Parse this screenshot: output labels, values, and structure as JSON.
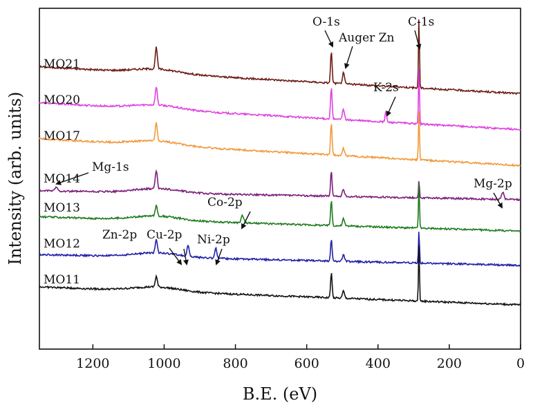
{
  "chart_data": {
    "type": "line",
    "title": "",
    "xlabel": "B.E. (eV)",
    "ylabel": "Intensity (arb. units)",
    "xlim": [
      1350,
      0
    ],
    "x_ticks": [
      1200,
      1000,
      800,
      600,
      400,
      200,
      0
    ],
    "x_tick_labels": [
      "1200",
      "1000",
      "800",
      "600",
      "400",
      "200",
      "0"
    ],
    "y_ticks_shown": false,
    "peak_be": {
      "Mg-1s": 1303,
      "Zn-2p": 1022,
      "Cu-2p": 933,
      "Ni-2p": 855,
      "Co-2p": 780,
      "O-1s": 531,
      "Auger Zn": 497,
      "K-2s": 378,
      "C-1s": 285,
      "Mg-2p": 50
    },
    "series": [
      {
        "name": "MO21",
        "color": "#6b1a14",
        "baseline": 7.0,
        "drop": 1.5,
        "peaks": {
          "Zn-2p": 0.6,
          "O-1s": 0.9,
          "Auger Zn": 0.3,
          "C-1s": 2.0
        }
      },
      {
        "name": "MO20",
        "color": "#e040e0",
        "baseline": 6.0,
        "drop": 1.5,
        "peaks": {
          "Zn-2p": 0.5,
          "O-1s": 0.9,
          "Auger Zn": 0.3,
          "K-2s": 0.3,
          "C-1s": 1.6
        }
      },
      {
        "name": "MO17",
        "color": "#f09a3a",
        "baseline": 5.0,
        "drop": 1.5,
        "peaks": {
          "Zn-2p": 0.5,
          "O-1s": 0.9,
          "Auger Zn": 0.2,
          "C-1s": 1.4
        }
      },
      {
        "name": "MO14",
        "color": "#7a1e7a",
        "baseline": 3.8,
        "drop": 0.5,
        "peaks": {
          "Mg-1s": 0.1,
          "Zn-2p": 0.5,
          "O-1s": 0.7,
          "Auger Zn": 0.2,
          "C-1s": 0.5,
          "Mg-2p": 0.2
        }
      },
      {
        "name": "MO13",
        "color": "#1e7a1e",
        "baseline": 3.0,
        "drop": 0.8,
        "peaks": {
          "Zn-2p": 0.3,
          "Co-2p": 0.2,
          "O-1s": 0.7,
          "Auger Zn": 0.2,
          "C-1s": 1.3
        }
      },
      {
        "name": "MO12",
        "color": "#1f1fa8",
        "baseline": 2.0,
        "drop": 0.6,
        "peaks": {
          "Zn-2p": 0.4,
          "Cu-2p": 0.3,
          "Ni-2p": 0.3,
          "O-1s": 0.6,
          "Auger Zn": 0.2,
          "C-1s": 0.9
        }
      },
      {
        "name": "MO11",
        "color": "#111111",
        "baseline": 1.0,
        "drop": 1.0,
        "peaks": {
          "Zn-2p": 0.3,
          "O-1s": 0.7,
          "Auger Zn": 0.2,
          "C-1s": 1.6
        }
      }
    ],
    "annotations": [
      {
        "label": "O-1s",
        "target_be": 531
      },
      {
        "label": "Auger Zn",
        "target_be": 497
      },
      {
        "label": "C-1s",
        "target_be": 285
      },
      {
        "label": "K-2s",
        "target_be": 378
      },
      {
        "label": "Mg-1s",
        "target_be": 1303
      },
      {
        "label": "Mg-2p",
        "target_be": 50
      },
      {
        "label": "Co-2p",
        "target_be": 780
      },
      {
        "label": "Zn-2p",
        "target_be": 1022
      },
      {
        "label": "Cu-2p",
        "target_be": 933
      },
      {
        "label": "Ni-2p",
        "target_be": 855
      }
    ]
  }
}
